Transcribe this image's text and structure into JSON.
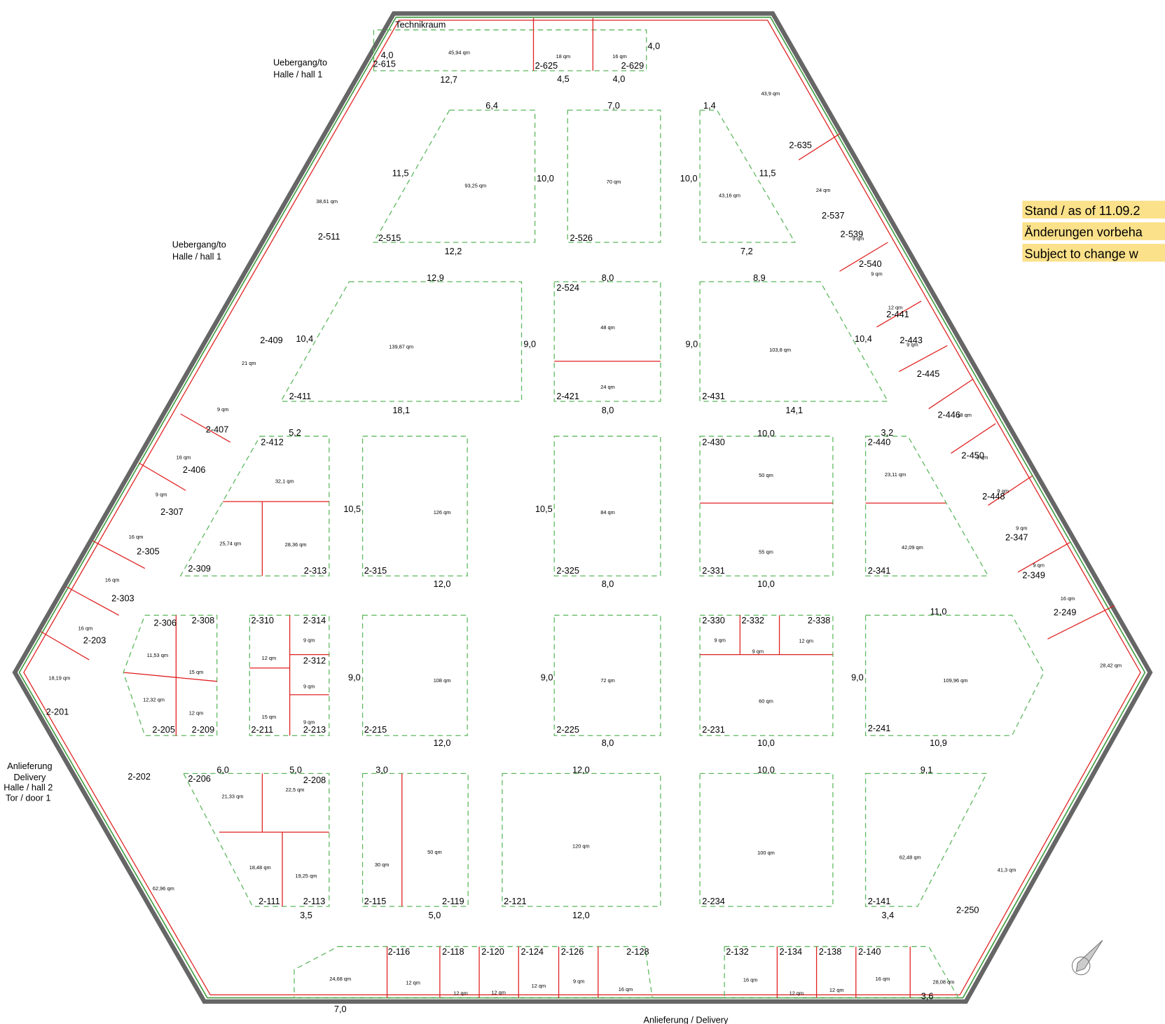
{
  "notice": [
    "Stand / as of 11.09.2",
    "Änderungen vorbeha",
    "Subject to change w"
  ],
  "labels": [
    "Technikraum",
    "Uebergang/to",
    "Halle / hall 1",
    "Uebergang/to",
    "Halle / hall 1",
    "Anlieferung",
    "Delivery",
    "Halle / hall 2",
    "Tor / door 1",
    "Anlieferung / Delivery"
  ],
  "booth_ids": [
    "2-615",
    "2-625",
    "2-629",
    "2-511",
    "2-515",
    "2-526",
    "2-635",
    "2-537",
    "2-539",
    "2-540",
    "2-524",
    "2-421",
    "2-411",
    "2-431",
    "2-409",
    "2-407",
    "2-406",
    "2-307",
    "2-305",
    "2-303",
    "2-203",
    "2-201",
    "2-412",
    "2-309",
    "2-313",
    "2-315",
    "2-325",
    "2-430",
    "2-331",
    "2-440",
    "2-341",
    "2-441",
    "2-443",
    "2-445",
    "2-446",
    "2-450",
    "2-448",
    "2-347",
    "2-349",
    "2-249",
    "2-306",
    "2-308",
    "2-310",
    "2-314",
    "2-312",
    "2-330",
    "2-332",
    "2-338",
    "2-205",
    "2-209",
    "2-211",
    "2-213",
    "2-215",
    "2-225",
    "2-231",
    "2-241",
    "2-206",
    "2-208",
    "2-202",
    "2-111",
    "2-113",
    "2-115",
    "2-119",
    "2-121",
    "2-234",
    "2-141",
    "2-250",
    "2-116",
    "2-118",
    "2-120",
    "2-124",
    "2-126",
    "2-128",
    "2-132",
    "2-134",
    "2-138",
    "2-140"
  ],
  "areas": [
    "45,94 qm",
    "18 qm",
    "16 qm",
    "38,61 qm",
    "93,25 qm",
    "70 qm",
    "43,16 qm",
    "43,9 qm",
    "24 qm",
    "9 qm",
    "9 qm",
    "12 qm",
    "9 qm",
    "139,87 qm",
    "48 qm",
    "24 qm",
    "103,8 qm",
    "21 qm",
    "9 qm",
    "16 qm",
    "9 qm",
    "16 qm",
    "16 qm",
    "16 qm",
    "18,19 qm",
    "32,1 qm",
    "25,74 qm",
    "28,36 qm",
    "126 qm",
    "84 qm",
    "50 qm",
    "55 qm",
    "23,11 qm",
    "42,09 qm",
    "18 qm",
    "9 qm",
    "9 qm",
    "9 qm",
    "9 qm",
    "16 qm",
    "28,42 qm",
    "11,53 qm",
    "12,32 qm",
    "15 qm",
    "12 qm",
    "12 qm",
    "15 qm",
    "9 qm",
    "9 qm",
    "9 qm",
    "108 qm",
    "72 qm",
    "9 qm",
    "9 qm",
    "12 qm",
    "60 qm",
    "109,96 qm",
    "21,33 qm",
    "22,5 qm",
    "18,48 qm",
    "19,25 qm",
    "62,96 qm",
    "30 qm",
    "50 qm",
    "120 qm",
    "100 qm",
    "62,48 qm",
    "41,3 qm",
    "24,68 qm",
    "12 qm",
    "12 qm",
    "12 qm",
    "12 qm",
    "9 qm",
    "16 qm",
    "16 qm",
    "12 qm",
    "12 qm",
    "16 qm",
    "28,08 qm"
  ],
  "dimensions": [
    "12,7",
    "4,5",
    "4,0",
    "4,0",
    "4,0",
    "6,4",
    "7,0",
    "1,4",
    "11,5",
    "10,0",
    "10,0",
    "11,5",
    "12,2",
    "7,2",
    "12,9",
    "8,0",
    "8,9",
    "10,4",
    "9,0",
    "9,0",
    "10,4",
    "18,1",
    "8,0",
    "14,1",
    "5,2",
    "10,0",
    "3,2",
    "10,5",
    "10,5",
    "12,0",
    "8,0",
    "10,0",
    "11,0",
    "9,0",
    "9,0",
    "9,0",
    "12,0",
    "8,0",
    "10,0",
    "10,9",
    "6,0",
    "5,0",
    "3,0",
    "12,0",
    "10,0",
    "9,1",
    "5,0",
    "12,0",
    "3,5",
    "3,4",
    "7,0",
    "3,6"
  ]
}
